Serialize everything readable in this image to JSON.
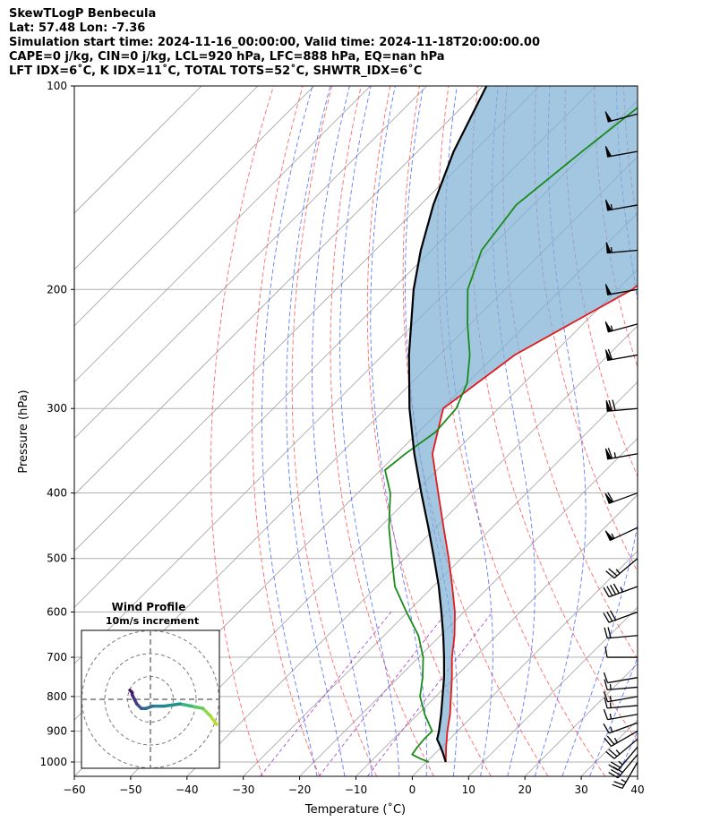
{
  "header": {
    "line1": "SkewTLogP Benbecula",
    "line2": "Lat: 57.48   Lon: -7.36",
    "line3": "Simulation start time: 2024-11-16_00:00:00, Valid time: 2024-11-18T20:00:00.00",
    "line4": "CAPE=0 j/kg, CIN=0 j/kg, LCL=920 hPa, LFC=888 hPa, EQ=nan hPa",
    "line5": "LFT IDX=6˚C, K IDX=11˚C, TOTAL TOTS=52˚C, SHWTR_IDX=6˚C"
  },
  "chart_data": {
    "type": "skewt",
    "xlabel": "Temperature (˚C)",
    "ylabel": "Pressure (hPa)",
    "xlim": [
      -60,
      40
    ],
    "ylim": [
      1050,
      100
    ],
    "y_scale": "log",
    "xticks": [
      "−60",
      "−50",
      "−40",
      "−30",
      "−20",
      "−10",
      "0",
      "10",
      "20",
      "30",
      "40"
    ],
    "xtick_values": [
      -60,
      -50,
      -40,
      -30,
      -20,
      -10,
      0,
      10,
      20,
      30,
      40
    ],
    "yticks": [
      "1000",
      "900",
      "800",
      "700",
      "600",
      "500",
      "400",
      "300",
      "200",
      "100"
    ],
    "ytick_values": [
      1000,
      900,
      800,
      700,
      600,
      500,
      400,
      300,
      200,
      100
    ],
    "grid": true,
    "series": [
      {
        "role": "temperature",
        "color": "#e31a1c",
        "pressure": [
          1000,
          950,
          900,
          850,
          800,
          750,
          700,
          650,
          600,
          550,
          500,
          450,
          400,
          350,
          300,
          250,
          200,
          175,
          150,
          125,
          100
        ],
        "temperature": [
          3.4,
          0.8,
          -1.8,
          -4.3,
          -7.3,
          -10.5,
          -14.1,
          -17.5,
          -21.6,
          -26.6,
          -32.2,
          -38.6,
          -45.7,
          -53.7,
          -59.8,
          -56.6,
          -47.4,
          -45.0,
          -43.0,
          -42.6,
          -42.8
        ]
      },
      {
        "role": "dewpoint",
        "color": "#1a8a1a",
        "pressure": [
          1000,
          990,
          975,
          950,
          925,
          900,
          850,
          800,
          750,
          700,
          650,
          600,
          550,
          500,
          450,
          400,
          370,
          350,
          325,
          300,
          275,
          250,
          225,
          200,
          175,
          150,
          125,
          100
        ],
        "temperature": [
          0.4,
          -1.5,
          -3.9,
          -4.3,
          -4.5,
          -4.5,
          -8.8,
          -12.8,
          -15.7,
          -19.2,
          -23.9,
          -30.2,
          -36.8,
          -42.3,
          -48.3,
          -54.2,
          -59.2,
          -58.5,
          -57.0,
          -57.5,
          -60.1,
          -64.6,
          -70.5,
          -76.6,
          -81.1,
          -83.0,
          -80.8,
          -77.7
        ]
      },
      {
        "role": "parcel",
        "color": "#000000",
        "pressure": [
          1000,
          970,
          950,
          925,
          920,
          900,
          850,
          800,
          750,
          700,
          650,
          600,
          550,
          500,
          450,
          400,
          350,
          300,
          250,
          200,
          175,
          150,
          125,
          100
        ],
        "temperature": [
          3.4,
          1.3,
          -0.2,
          -2.2,
          -2.4,
          -3.3,
          -5.9,
          -8.8,
          -11.9,
          -15.5,
          -19.5,
          -24.0,
          -29.0,
          -34.8,
          -41.3,
          -48.7,
          -56.9,
          -65.8,
          -75.4,
          -86.2,
          -91.9,
          -97.7,
          -103.6,
          -109.4
        ]
      }
    ],
    "shaded_region": {
      "between": [
        "temperature",
        "parcel"
      ],
      "color": "#7fb2d6"
    },
    "wind_barbs": {
      "pressure": [
        1000,
        975,
        950,
        925,
        900,
        875,
        850,
        825,
        800,
        775,
        750,
        700,
        650,
        600,
        550,
        500,
        450,
        400,
        350,
        300,
        250,
        225,
        200,
        175,
        150,
        125,
        110
      ],
      "speed_kt": [
        25,
        30,
        25,
        25,
        25,
        15,
        15,
        15,
        15,
        15,
        10,
        10,
        20,
        30,
        45,
        25,
        55,
        60,
        65,
        70,
        60,
        55,
        50,
        55,
        55,
        50,
        50
      ],
      "direction_deg": [
        210,
        220,
        220,
        230,
        240,
        250,
        260,
        265,
        260,
        265,
        260,
        270,
        265,
        250,
        250,
        230,
        245,
        250,
        260,
        265,
        260,
        255,
        260,
        265,
        260,
        260,
        255
      ]
    },
    "inset": {
      "title": "Wind Profile",
      "subtitle": "10m/s increment",
      "rings": [
        10,
        20,
        30
      ],
      "hodograph_u": [
        29,
        26,
        23,
        18,
        13,
        6,
        1,
        -2,
        -4,
        -6,
        -7,
        -8,
        -8,
        -9
      ],
      "hodograph_v": [
        -11,
        -7,
        -4,
        -3,
        -2,
        -3,
        -3,
        -4,
        -4,
        -2,
        0,
        2,
        3,
        4
      ]
    }
  }
}
